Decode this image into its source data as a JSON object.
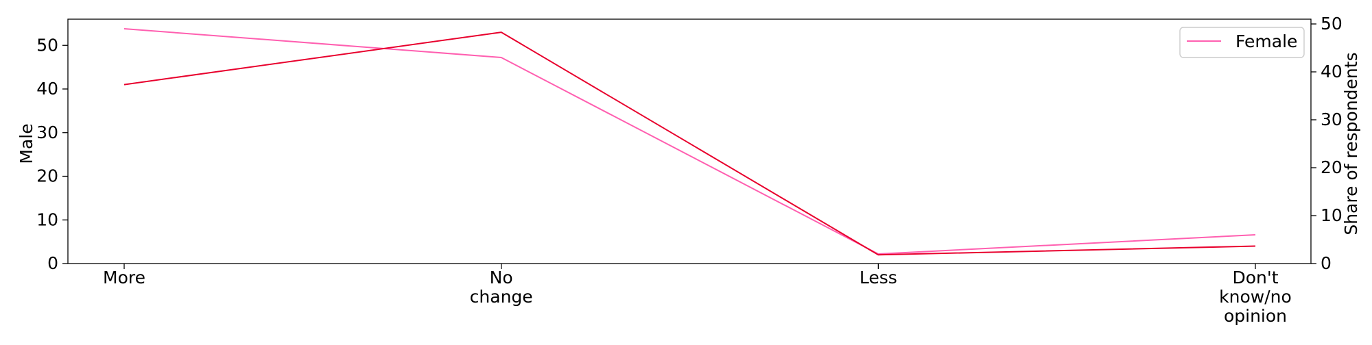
{
  "chart_data": {
    "type": "line",
    "categories": [
      "More",
      "No change",
      "Less",
      "Don't know/no opinion"
    ],
    "category_tick_lines": [
      [
        "More"
      ],
      [
        "No",
        "change"
      ],
      [
        "Less"
      ],
      [
        "Don't",
        "know/no",
        "opinion"
      ]
    ],
    "series": [
      {
        "name": "",
        "axis": "left",
        "color": "#e8002d",
        "values": [
          41,
          53,
          2,
          4
        ]
      },
      {
        "name": "Female",
        "axis": "right",
        "color": "#ff5fb0",
        "values": [
          49,
          43,
          2,
          6
        ]
      }
    ],
    "left_axis": {
      "label": "Male",
      "range": [
        0,
        56
      ],
      "ticks": [
        0,
        10,
        20,
        30,
        40,
        50
      ]
    },
    "right_axis": {
      "label": "Share of respondents",
      "range": [
        0,
        51
      ],
      "ticks": [
        0,
        10,
        20,
        30,
        40,
        50
      ]
    },
    "legend": {
      "placement": "top-right",
      "entries": [
        "Female"
      ]
    },
    "grid": false
  }
}
